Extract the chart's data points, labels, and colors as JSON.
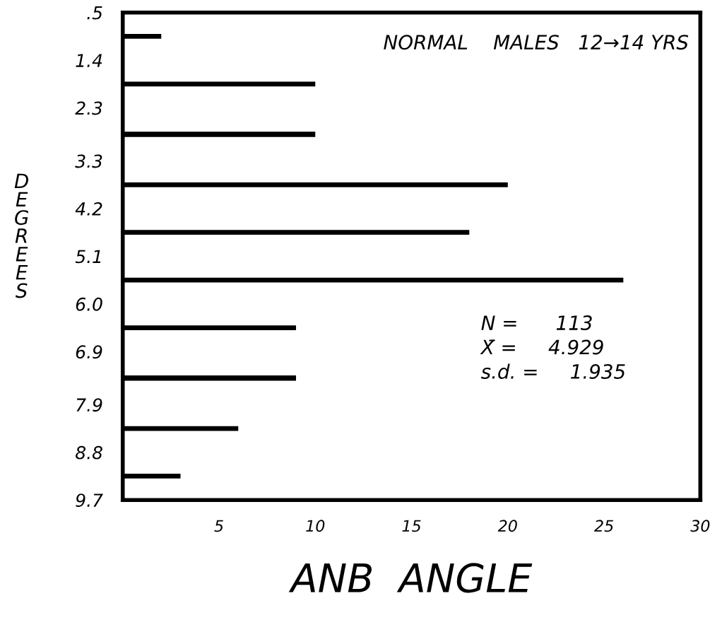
{
  "chart_data": {
    "type": "histogram",
    "orientation": "horizontal",
    "title": "NORMAL    MALES   12→14 YRS",
    "xlabel": "ANB  ANGLE",
    "ylabel": "DEGREES",
    "bins": [
      0.5,
      1.4,
      2.3,
      3.3,
      4.2,
      5.1,
      6.0,
      6.9,
      7.9,
      8.8,
      9.7
    ],
    "values": [
      2,
      10,
      10,
      20,
      18,
      26,
      9,
      9,
      6,
      3
    ],
    "color": "#000000",
    "xlim": [
      0,
      30
    ],
    "xticks": [
      5,
      10,
      15,
      20,
      25,
      30
    ],
    "ylim": [
      9.7,
      0.5
    ],
    "yticks": [
      {
        "value": 0.5,
        "label": ".5"
      },
      1.4,
      2.3,
      3.3,
      4.2,
      5.1,
      {
        "value": 6.0,
        "label": "6.0"
      },
      6.9,
      7.9,
      8.8,
      9.7
    ],
    "annotations": [
      "N =      113",
      "X̄ =     4.929",
      "s.d. =     1.935"
    ],
    "grid": false,
    "legend": false
  }
}
